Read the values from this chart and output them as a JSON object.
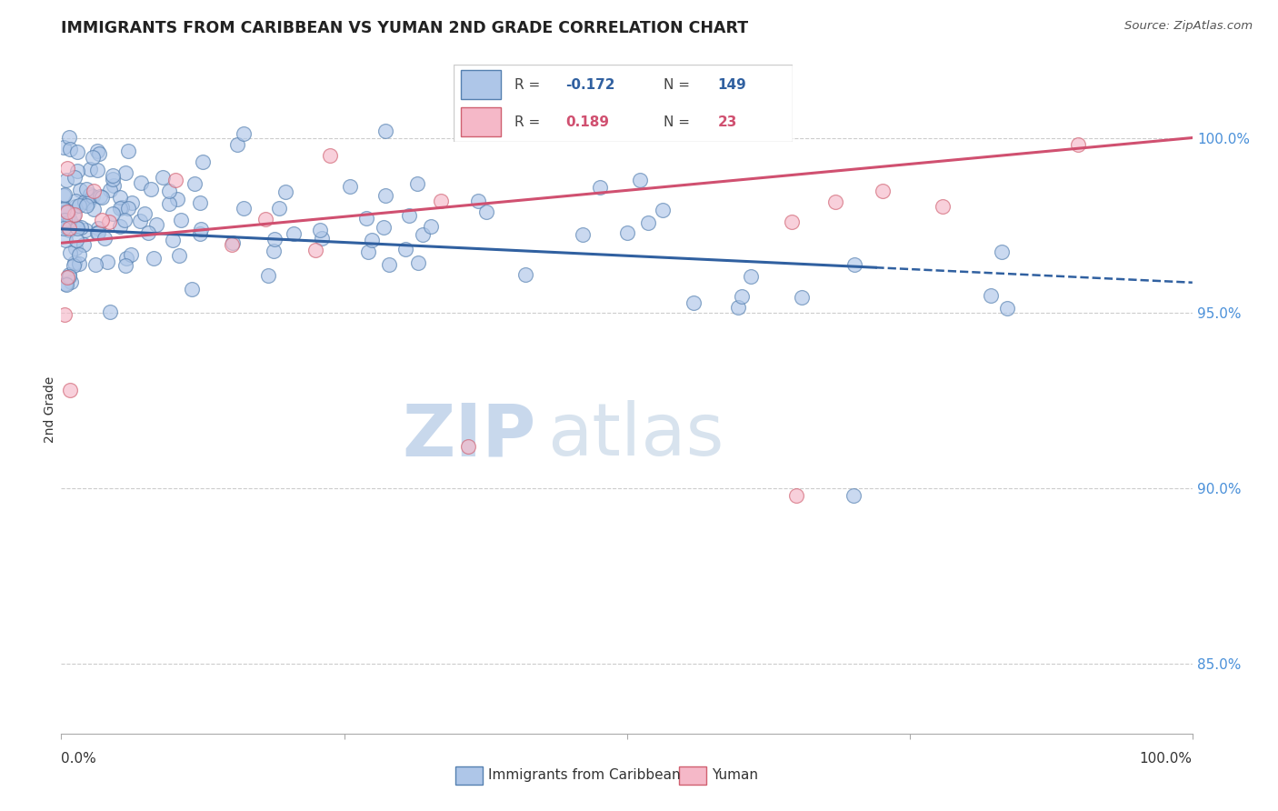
{
  "title": "IMMIGRANTS FROM CARIBBEAN VS YUMAN 2ND GRADE CORRELATION CHART",
  "source_text": "Source: ZipAtlas.com",
  "ylabel": "2nd Grade",
  "y_ticks": [
    85.0,
    90.0,
    95.0,
    100.0
  ],
  "x_range": [
    0.0,
    100.0
  ],
  "y_range": [
    83.0,
    101.5
  ],
  "blue_R": -0.172,
  "blue_N": 149,
  "pink_R": 0.189,
  "pink_N": 23,
  "blue_color": "#aec6e8",
  "pink_color": "#f5b8c8",
  "blue_edge_color": "#5580b0",
  "pink_edge_color": "#d06070",
  "blue_line_color": "#3060a0",
  "pink_line_color": "#d05070",
  "watermark_zip_color": "#c8d8ec",
  "watermark_atlas_color": "#c8d8e8",
  "legend_label_blue": "Immigrants from Caribbean",
  "legend_label_pink": "Yuman",
  "blue_trend_start_y": 97.4,
  "blue_trend_end_y": 96.3,
  "blue_dash_start_x": 72,
  "blue_dash_end_y": 96.0,
  "pink_trend_start_y": 97.0,
  "pink_trend_end_y": 100.0
}
